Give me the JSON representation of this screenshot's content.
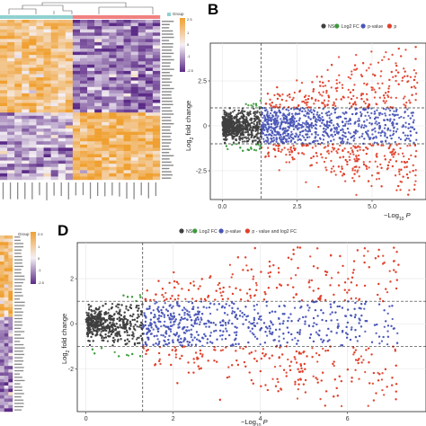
{
  "panels": {
    "B": {
      "letter": "B"
    },
    "D": {
      "letter": "D"
    }
  },
  "colors": {
    "ns": "#3f3f3f",
    "log2fc": "#3b9a3b",
    "pvalue": "#4a56b8",
    "both": "#e0402a",
    "heat_low": "#5b2a86",
    "heat_mid": "#f5f0f5",
    "heat_high": "#f0a030",
    "group_a": "#8fd1d1",
    "group_b": "#f08080"
  },
  "heatmaps": {
    "top": {
      "legend_title": "Group",
      "scale_labels": [
        "2.5",
        "1",
        "0",
        "-1",
        "-2.5"
      ]
    },
    "bottom": {
      "legend_title": "Group",
      "scale_labels": [
        "2.5",
        "1",
        "0",
        "-1",
        "-2.5"
      ]
    }
  },
  "chart_data": [
    {
      "panel": "B",
      "type": "scatter",
      "title": "",
      "xlabel": "-Log10 P",
      "ylabel": "Log2 fold change",
      "xlim": [
        -0.4,
        6.8
      ],
      "ylim": [
        -4.1,
        4.6
      ],
      "xticks": [
        "0.0",
        "2.5",
        "5.0"
      ],
      "yticks": [
        "2.5",
        "0",
        "-2.5"
      ],
      "thresholds": {
        "x": 1.3,
        "y": [
          1,
          -1
        ]
      },
      "legend": {
        "placement": "top",
        "entries": [
          {
            "key": "ns",
            "label": "NS"
          },
          {
            "key": "log2fc",
            "label": "Log2 FC"
          },
          {
            "key": "pvalue",
            "label": "p-value"
          },
          {
            "key": "both",
            "label": "p"
          }
        ]
      }
    },
    {
      "panel": "D",
      "type": "scatter",
      "title": "",
      "xlabel": "-Log10 P",
      "ylabel": "Log2 fold change",
      "xlim": [
        -0.2,
        7.8
      ],
      "ylim": [
        -3.9,
        3.6
      ],
      "xticks": [
        "0",
        "2",
        "4",
        "6"
      ],
      "yticks": [
        "2",
        "0",
        "-2"
      ],
      "thresholds": {
        "x": 1.3,
        "y": [
          1,
          -1
        ]
      },
      "legend": {
        "placement": "top",
        "entries": [
          {
            "key": "ns",
            "label": "NS"
          },
          {
            "key": "log2fc",
            "label": "Log2 FC"
          },
          {
            "key": "pvalue",
            "label": "p-value"
          },
          {
            "key": "both",
            "label": "p - value and log2 FC"
          }
        ]
      }
    }
  ]
}
